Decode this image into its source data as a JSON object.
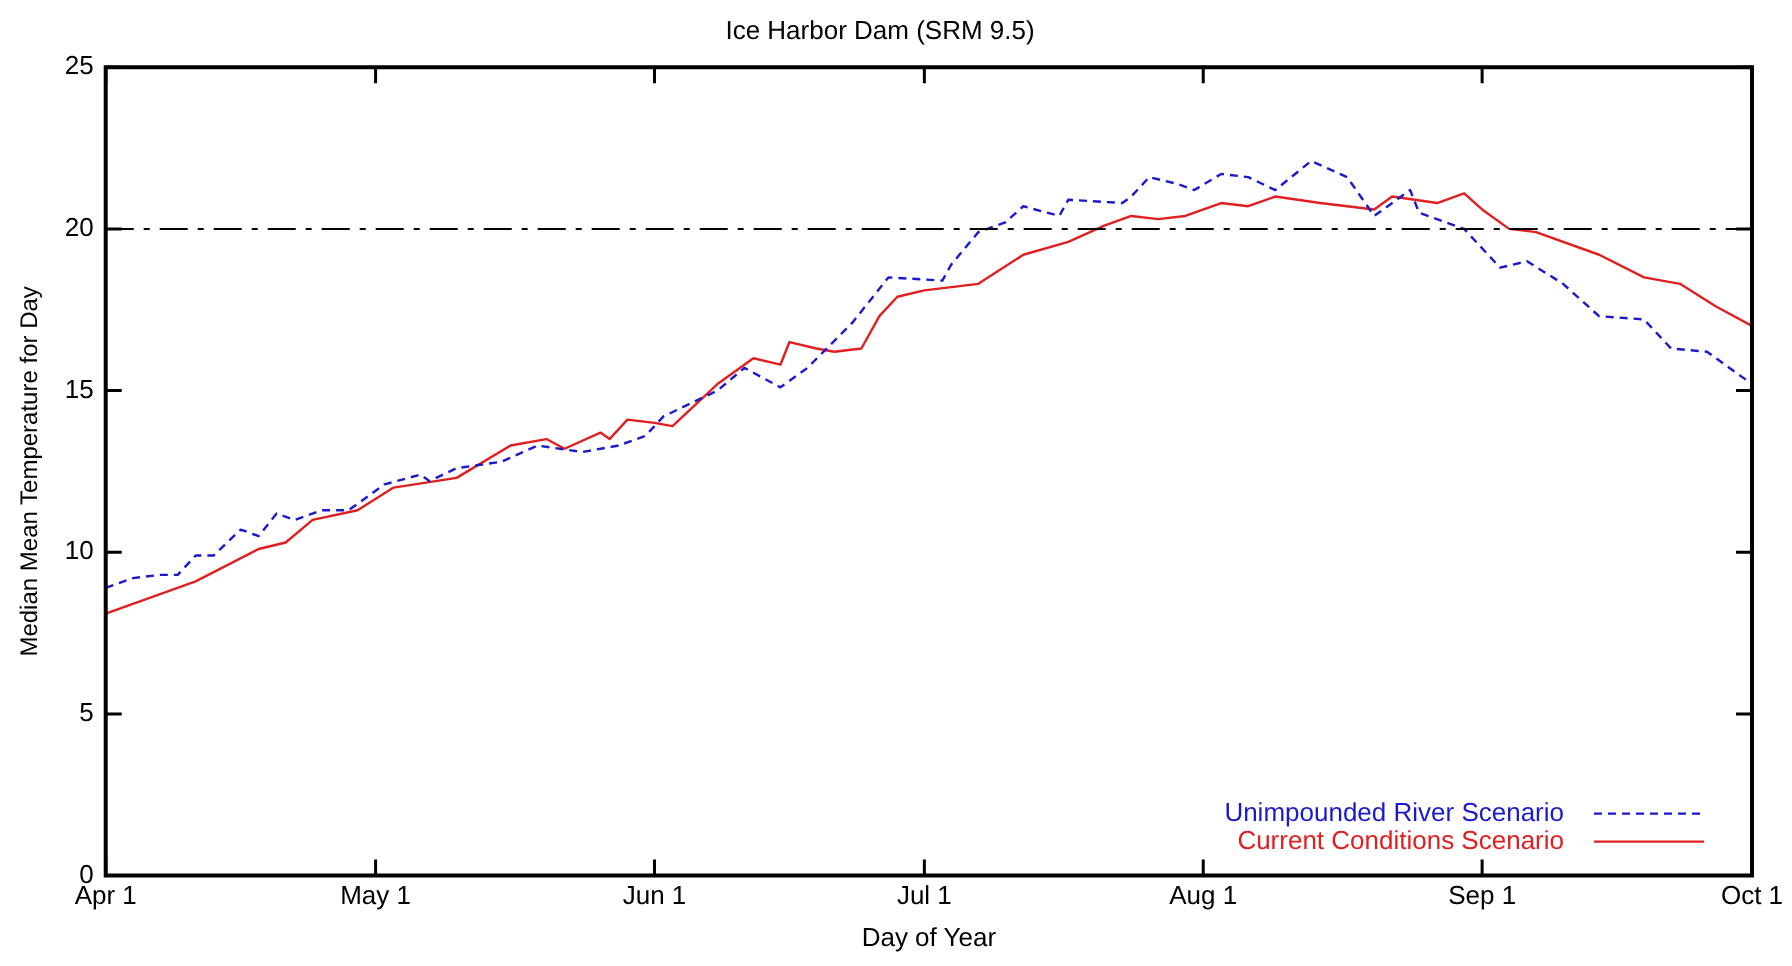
{
  "chart_data": {
    "type": "line",
    "title": "Ice Harbor Dam (SRM 9.5)",
    "xlabel": "Day of Year",
    "ylabel": "Median Mean Temperature for Day",
    "xlim": [
      "--04-01",
      "--10-01"
    ],
    "xticks": [
      {
        "value": "--04-01",
        "label": "Apr 1"
      },
      {
        "value": "--05-01",
        "label": "May 1"
      },
      {
        "value": "--06-01",
        "label": "Jun 1"
      },
      {
        "value": "--07-01",
        "label": "Jul 1"
      },
      {
        "value": "--08-01",
        "label": "Aug 1"
      },
      {
        "value": "--09-01",
        "label": "Sep 1"
      },
      {
        "value": "--10-01",
        "label": "Oct 1"
      }
    ],
    "ylim": [
      0,
      25
    ],
    "yticks": [
      0,
      5,
      10,
      15,
      20,
      25
    ],
    "grid": false,
    "legend": "bottom right",
    "marker": "none",
    "ref_lines": [
      {
        "axis": "y",
        "value": 20,
        "color": "#000000",
        "line_style": "dashdot"
      }
    ],
    "series": [
      {
        "name": "Unimpounded River Scenario",
        "color": "#1a1acc",
        "line_style": "dashed",
        "x": [
          "--04-01",
          "--04-04",
          "--04-07",
          "--04-09",
          "--04-11",
          "--04-13",
          "--04-16",
          "--04-18",
          "--04-20",
          "--04-22",
          "--04-25",
          "--04-28",
          "--05-02",
          "--05-06",
          "--05-07",
          "--05-10",
          "--05-15",
          "--05-19",
          "--05-24",
          "--05-28",
          "--05-31",
          "--06-02",
          "--06-08",
          "--06-11",
          "--06-15",
          "--06-18",
          "--06-23",
          "--06-27",
          "--07-03",
          "--07-04",
          "--07-07",
          "--07-10",
          "--07-12",
          "--07-16",
          "--07-17",
          "--07-23",
          "--07-24",
          "--07-26",
          "--07-29",
          "--07-31",
          "--08-03",
          "--08-06",
          "--08-09",
          "--08-13",
          "--08-17",
          "--08-20",
          "--08-24",
          "--08-25",
          "--08-30",
          "--09-03",
          "--09-06",
          "--09-10",
          "--09-14",
          "--09-19",
          "--09-22",
          "--09-26",
          "--09-30",
          "--10-01"
        ],
        "values": [
          8.9,
          9.2,
          9.3,
          9.3,
          9.9,
          9.9,
          10.7,
          10.5,
          11.2,
          11.0,
          11.3,
          11.3,
          12.1,
          12.4,
          12.2,
          12.6,
          12.8,
          13.3,
          13.1,
          13.3,
          13.6,
          14.2,
          15.0,
          15.7,
          15.1,
          15.7,
          17.1,
          18.5,
          18.4,
          18.9,
          19.9,
          20.2,
          20.7,
          20.4,
          20.9,
          20.8,
          21.0,
          21.6,
          21.4,
          21.2,
          21.7,
          21.6,
          21.2,
          22.1,
          21.6,
          20.4,
          21.2,
          20.5,
          20.0,
          18.8,
          19.0,
          18.3,
          17.3,
          17.2,
          16.3,
          16.2,
          15.4,
          15.2
        ]
      },
      {
        "name": "Current Conditions Scenario",
        "color": "#e02020",
        "line_style": "solid",
        "x": [
          "--04-01",
          "--04-11",
          "--04-18",
          "--04-21",
          "--04-24",
          "--04-29",
          "--05-03",
          "--05-10",
          "--05-16",
          "--05-20",
          "--05-22",
          "--05-26",
          "--05-27",
          "--05-29",
          "--06-01",
          "--06-03",
          "--06-08",
          "--06-12",
          "--06-15",
          "--06-16",
          "--06-19",
          "--06-21",
          "--06-24",
          "--06-26",
          "--06-28",
          "--07-01",
          "--07-07",
          "--07-12",
          "--07-17",
          "--07-21",
          "--07-24",
          "--07-27",
          "--07-30",
          "--08-03",
          "--08-06",
          "--08-09",
          "--08-14",
          "--08-20",
          "--08-22",
          "--08-27",
          "--08-30",
          "--09-01",
          "--09-04",
          "--09-07",
          "--09-14",
          "--09-19",
          "--09-23",
          "--09-27",
          "--10-01"
        ],
        "values": [
          8.1,
          9.1,
          10.1,
          10.3,
          11.0,
          11.3,
          12.0,
          12.3,
          13.3,
          13.5,
          13.2,
          13.7,
          13.5,
          14.1,
          14.0,
          13.9,
          15.2,
          16.0,
          15.8,
          16.5,
          16.3,
          16.2,
          16.3,
          17.3,
          17.9,
          18.1,
          18.3,
          19.2,
          19.6,
          20.1,
          20.4,
          20.3,
          20.4,
          20.8,
          20.7,
          21.0,
          20.8,
          20.6,
          21.0,
          20.8,
          21.1,
          20.6,
          20.0,
          19.9,
          19.2,
          18.5,
          18.3,
          17.6,
          17.0
        ]
      }
    ]
  }
}
